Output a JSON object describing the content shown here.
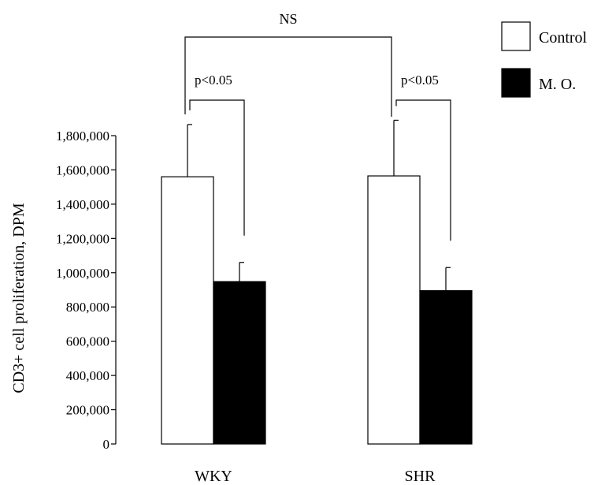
{
  "chart_data": {
    "type": "bar",
    "categories": [
      "WKY",
      "SHR"
    ],
    "series": [
      {
        "name": "Control",
        "values": [
          1560000,
          1565000
        ],
        "errors": [
          305000,
          325000
        ],
        "color": "#ffffff"
      },
      {
        "name": "M. O.",
        "values": [
          948000,
          895000
        ],
        "errors": [
          112000,
          135000
        ],
        "color": "#000000"
      }
    ],
    "ylabel": "CD3+ cell proliferation, DPM",
    "ylim": [
      0,
      1800000
    ],
    "yticks": [
      0,
      200000,
      400000,
      600000,
      800000,
      1000000,
      1200000,
      1400000,
      1600000,
      1800000
    ],
    "ytick_labels": [
      "0",
      "200,000",
      "400,000",
      "600,000",
      "800,000",
      "1,000,000",
      "1,200,000",
      "1,400,000",
      "1,600,000",
      "1,800,000"
    ],
    "legend_position": "top-right",
    "grid": false,
    "annotations": {
      "within_group": [
        "p<0.05",
        "p<0.05"
      ],
      "between_group": "NS"
    }
  }
}
